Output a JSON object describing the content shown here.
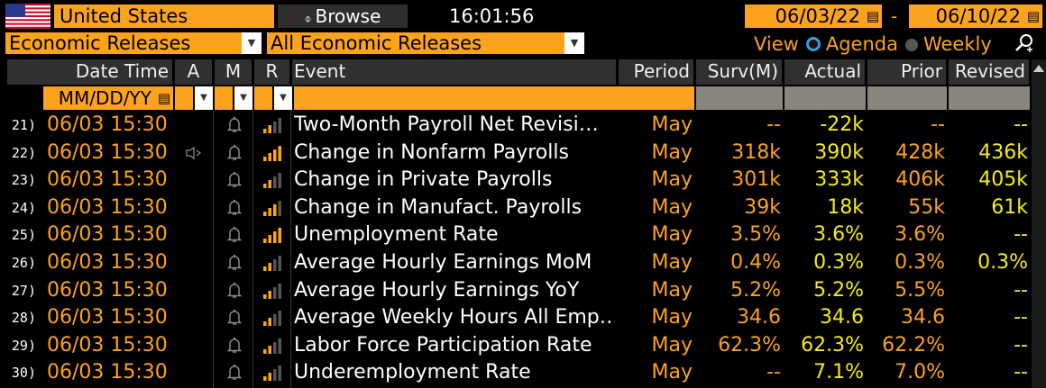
{
  "toolbar": {
    "country": "United States",
    "browse_label": "Browse",
    "time": "16:01:56",
    "date_from": "06/03/22",
    "date_sep": "-",
    "date_to": "06/10/22"
  },
  "filters": {
    "category": "Economic Releases",
    "subcategory": "All Economic Releases",
    "view_label": "View",
    "agenda_label": "Agenda",
    "weekly_label": "Weekly"
  },
  "columns": {
    "datetime": "Date Time",
    "a": "A",
    "m": "M",
    "r": "R",
    "event": "Event",
    "period": "Period",
    "surv": "Surv(M)",
    "actual": "Actual",
    "prior": "Prior",
    "revised": "Revised",
    "date_format": "MM/DD/YY"
  },
  "colors": {
    "accent": "#fba21f",
    "actual": "#f5ea1b",
    "header_bg": "#303030",
    "bg": "#000000"
  },
  "rows": [
    {
      "num": "21)",
      "dt": "06/03 15:30",
      "alert": false,
      "relevance": 2,
      "event": "Two-Month Payroll Net Revisi…",
      "period": "May",
      "surv": "--",
      "actual": "-22k",
      "prior": "--",
      "revised": "--"
    },
    {
      "num": "22)",
      "dt": "06/03 15:30",
      "alert": true,
      "relevance": 4,
      "event": "Change in Nonfarm Payrolls",
      "period": "May",
      "surv": "318k",
      "actual": "390k",
      "prior": "428k",
      "revised": "436k"
    },
    {
      "num": "23)",
      "dt": "06/03 15:30",
      "alert": false,
      "relevance": 2,
      "event": "Change in Private Payrolls",
      "period": "May",
      "surv": "301k",
      "actual": "333k",
      "prior": "406k",
      "revised": "405k"
    },
    {
      "num": "24)",
      "dt": "06/03 15:30",
      "alert": false,
      "relevance": 3,
      "event": "Change in Manufact. Payrolls",
      "period": "May",
      "surv": "39k",
      "actual": "18k",
      "prior": "55k",
      "revised": "61k"
    },
    {
      "num": "25)",
      "dt": "06/03 15:30",
      "alert": false,
      "relevance": 4,
      "event": "Unemployment Rate",
      "period": "May",
      "surv": "3.5%",
      "actual": "3.6%",
      "prior": "3.6%",
      "revised": "--"
    },
    {
      "num": "26)",
      "dt": "06/03 15:30",
      "alert": false,
      "relevance": 2,
      "event": "Average Hourly Earnings MoM",
      "period": "May",
      "surv": "0.4%",
      "actual": "0.3%",
      "prior": "0.3%",
      "revised": "0.3%"
    },
    {
      "num": "27)",
      "dt": "06/03 15:30",
      "alert": false,
      "relevance": 2,
      "event": "Average Hourly Earnings YoY",
      "period": "May",
      "surv": "5.2%",
      "actual": "5.2%",
      "prior": "5.5%",
      "revised": "--"
    },
    {
      "num": "28)",
      "dt": "06/03 15:30",
      "alert": false,
      "relevance": 2,
      "event": "Average Weekly Hours All Emp…",
      "period": "May",
      "surv": "34.6",
      "actual": "34.6",
      "prior": "34.6",
      "revised": "--"
    },
    {
      "num": "29)",
      "dt": "06/03 15:30",
      "alert": false,
      "relevance": 2,
      "event": "Labor Force Participation Rate",
      "period": "May",
      "surv": "62.3%",
      "actual": "62.3%",
      "prior": "62.2%",
      "revised": "--"
    },
    {
      "num": "30)",
      "dt": "06/03 15:30",
      "alert": false,
      "relevance": 2,
      "event": "Underemployment Rate",
      "period": "May",
      "surv": "--",
      "actual": "7.1%",
      "prior": "7.0%",
      "revised": "--"
    }
  ]
}
